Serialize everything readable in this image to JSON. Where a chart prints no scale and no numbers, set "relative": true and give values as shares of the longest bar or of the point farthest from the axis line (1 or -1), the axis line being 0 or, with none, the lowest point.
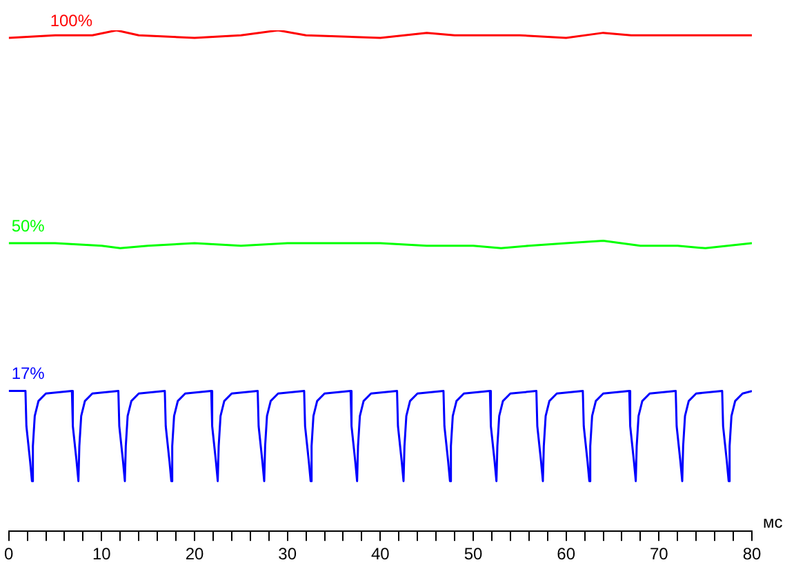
{
  "chart_data": {
    "type": "line",
    "relative": true,
    "xlabel": "мс",
    "xlim": [
      0,
      80
    ],
    "xticks": [
      0,
      {
        "value": 2,
        "label": null
      },
      {
        "value": 4,
        "label": null
      },
      {
        "value": 6,
        "label": null
      },
      {
        "value": 8,
        "label": null
      },
      10,
      {
        "value": 12,
        "label": null
      },
      {
        "value": 14,
        "label": null
      },
      {
        "value": 16,
        "label": null
      },
      {
        "value": 18,
        "label": null
      },
      20,
      {
        "value": 22,
        "label": null
      },
      {
        "value": 24,
        "label": null
      },
      {
        "value": 26,
        "label": null
      },
      {
        "value": 28,
        "label": null
      },
      30,
      {
        "value": 32,
        "label": null
      },
      {
        "value": 34,
        "label": null
      },
      {
        "value": 36,
        "label": null
      },
      {
        "value": 38,
        "label": null
      },
      40,
      {
        "value": 42,
        "label": null
      },
      {
        "value": 44,
        "label": null
      },
      {
        "value": 46,
        "label": null
      },
      {
        "value": 48,
        "label": null
      },
      50,
      {
        "value": 52,
        "label": null
      },
      {
        "value": 54,
        "label": null
      },
      {
        "value": 56,
        "label": null
      },
      {
        "value": 58,
        "label": null
      },
      60,
      {
        "value": 62,
        "label": null
      },
      {
        "value": 64,
        "label": null
      },
      {
        "value": 66,
        "label": null
      },
      {
        "value": 68,
        "label": null
      },
      70,
      {
        "value": 72,
        "label": null
      },
      {
        "value": 74,
        "label": null
      },
      {
        "value": 76,
        "label": null
      },
      {
        "value": 78,
        "label": null
      },
      80
    ],
    "marker": "none",
    "line_style": "solid",
    "series": [
      {
        "name": "100%",
        "color": "#ff0000",
        "x": [
          0,
          5,
          9,
          11.6,
          14,
          20,
          25,
          29,
          32,
          40,
          45,
          48,
          55,
          60,
          64,
          67,
          70,
          75,
          80
        ],
        "values": [
          0.985,
          0.99,
          0.99,
          1.0,
          0.99,
          0.985,
          0.99,
          1.0,
          0.99,
          0.985,
          0.995,
          0.99,
          0.99,
          0.985,
          0.995,
          0.99,
          0.99,
          0.99,
          0.99
        ]
      },
      {
        "name": "50%",
        "color": "#00ff00",
        "x": [
          0,
          5,
          10,
          12,
          15,
          20,
          25,
          30,
          35,
          40,
          45,
          50,
          53,
          56,
          60,
          64,
          68,
          72,
          75,
          80
        ],
        "values": [
          0.575,
          0.575,
          0.57,
          0.565,
          0.57,
          0.575,
          0.57,
          0.575,
          0.575,
          0.575,
          0.57,
          0.57,
          0.565,
          0.57,
          0.575,
          0.58,
          0.57,
          0.57,
          0.565,
          0.575
        ]
      },
      {
        "name": "17%",
        "color": "#0000ff",
        "x": [
          0,
          1.8,
          1.9,
          2.3,
          2.5,
          2.6,
          2.8,
          3.2,
          4,
          6.8,
          6.9,
          7.3,
          7.5,
          7.6,
          7.8,
          8.2,
          9,
          11.8,
          11.9,
          12.3,
          12.5,
          12.6,
          12.8,
          13.2,
          14,
          16.8,
          16.9,
          17.3,
          17.5,
          17.6,
          17.8,
          18.2,
          19,
          21.8,
          21.9,
          22.3,
          22.5,
          22.6,
          22.8,
          23.2,
          24,
          26.8,
          26.9,
          27.3,
          27.5,
          27.6,
          27.8,
          28.2,
          29,
          31.8,
          31.9,
          32.3,
          32.5,
          32.6,
          32.8,
          33.2,
          34,
          36.8,
          36.9,
          37.3,
          37.5,
          37.6,
          37.8,
          38.2,
          39,
          41.8,
          41.9,
          42.3,
          42.5,
          42.6,
          42.8,
          43.2,
          44,
          46.8,
          46.9,
          47.3,
          47.5,
          47.6,
          47.8,
          48.2,
          49,
          51.8,
          51.9,
          52.3,
          52.5,
          52.6,
          52.8,
          53.2,
          54,
          56.8,
          56.9,
          57.3,
          57.5,
          57.6,
          57.8,
          58.2,
          59,
          61.8,
          61.9,
          62.3,
          62.5,
          62.6,
          62.8,
          63.2,
          64,
          66.8,
          66.9,
          67.3,
          67.5,
          67.6,
          67.8,
          68.2,
          69,
          71.8,
          71.9,
          72.3,
          72.5,
          72.6,
          72.8,
          73.2,
          74,
          76.8,
          76.9,
          77.3,
          77.5,
          77.6,
          77.8,
          78.2,
          79,
          80
        ],
        "values": [
          0.28,
          0.28,
          0.21,
          0.14,
          0.1,
          0.17,
          0.23,
          0.26,
          0.275,
          0.28,
          0.21,
          0.14,
          0.1,
          0.17,
          0.23,
          0.26,
          0.275,
          0.28,
          0.21,
          0.14,
          0.1,
          0.17,
          0.23,
          0.26,
          0.275,
          0.28,
          0.21,
          0.14,
          0.1,
          0.17,
          0.23,
          0.26,
          0.275,
          0.28,
          0.21,
          0.14,
          0.1,
          0.17,
          0.23,
          0.26,
          0.275,
          0.28,
          0.21,
          0.14,
          0.1,
          0.17,
          0.23,
          0.26,
          0.275,
          0.28,
          0.21,
          0.14,
          0.1,
          0.17,
          0.23,
          0.26,
          0.275,
          0.28,
          0.21,
          0.14,
          0.1,
          0.17,
          0.23,
          0.26,
          0.275,
          0.28,
          0.21,
          0.14,
          0.1,
          0.17,
          0.23,
          0.26,
          0.275,
          0.28,
          0.21,
          0.14,
          0.1,
          0.17,
          0.23,
          0.26,
          0.275,
          0.28,
          0.21,
          0.14,
          0.1,
          0.17,
          0.23,
          0.26,
          0.275,
          0.28,
          0.21,
          0.14,
          0.1,
          0.17,
          0.23,
          0.26,
          0.275,
          0.28,
          0.21,
          0.14,
          0.1,
          0.17,
          0.23,
          0.26,
          0.275,
          0.28,
          0.21,
          0.14,
          0.1,
          0.17,
          0.23,
          0.26,
          0.275,
          0.28,
          0.21,
          0.14,
          0.1,
          0.17,
          0.23,
          0.26,
          0.275,
          0.28,
          0.21,
          0.14,
          0.1,
          0.17,
          0.23,
          0.26,
          0.275,
          0.28
        ]
      }
    ]
  }
}
